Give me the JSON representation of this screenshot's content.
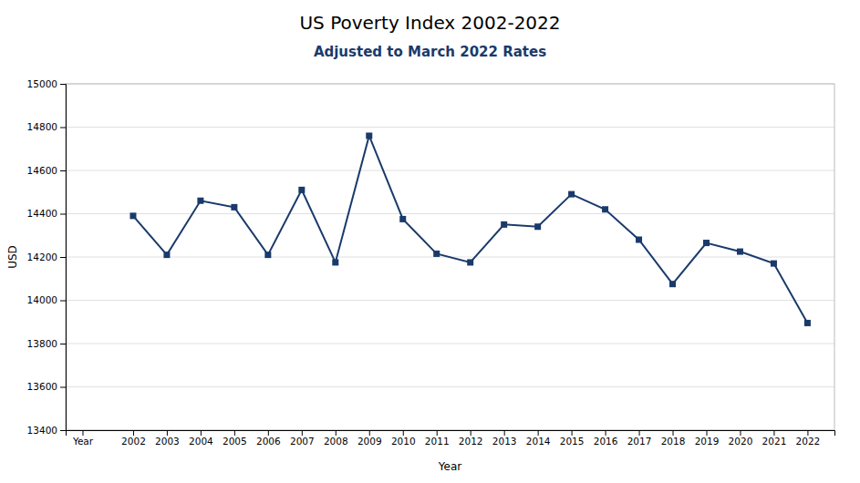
{
  "chart_data": {
    "type": "line",
    "title": "US Poverty Index 2002-2022",
    "subtitle": "Adjusted to March 2022 Rates",
    "xlabel": "Year",
    "ylabel": "USD",
    "x": [
      2002,
      2003,
      2004,
      2005,
      2006,
      2007,
      2008,
      2009,
      2010,
      2011,
      2012,
      2013,
      2014,
      2015,
      2016,
      2017,
      2018,
      2019,
      2020,
      2021,
      2022
    ],
    "values": [
      14390,
      14210,
      14460,
      14430,
      14210,
      14510,
      14175,
      14760,
      14375,
      14215,
      14175,
      14350,
      14340,
      14490,
      14420,
      14280,
      14075,
      14265,
      14225,
      14170,
      13895
    ],
    "color": "#1a3a6b",
    "marker": "square",
    "xlim": [
      2000.0,
      2022.8
    ],
    "xticks": [
      {
        "value": 2000.5,
        "label": "Year"
      },
      2002,
      2003,
      2004,
      2005,
      2006,
      2007,
      2008,
      2009,
      2010,
      2011,
      2012,
      2013,
      2014,
      2015,
      2016,
      2017,
      2018,
      2019,
      2020,
      2021,
      2022
    ],
    "ylim": [
      13400,
      15000
    ],
    "yticks": [
      13400,
      13600,
      13800,
      14000,
      14200,
      14400,
      14600,
      14800,
      15000
    ],
    "grid": true
  }
}
